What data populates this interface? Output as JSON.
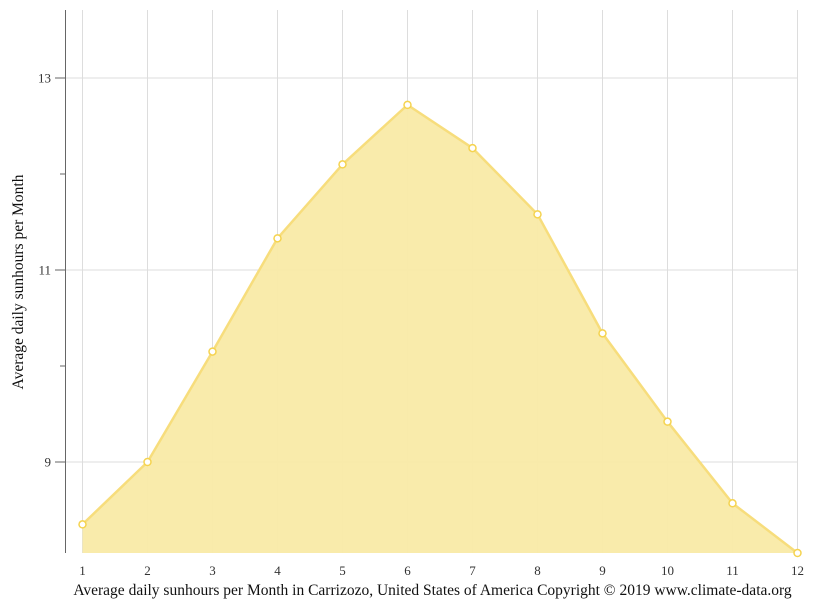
{
  "chart_data": {
    "type": "area",
    "title": "Average daily sunhours per Month in Carrizozo, United States of America Copyright © 2019 www.climate-data.org",
    "xlabel": "",
    "ylabel": "Average daily sunhours per Month",
    "categories": [
      "1",
      "2",
      "3",
      "4",
      "5",
      "6",
      "7",
      "8",
      "9",
      "10",
      "11",
      "12"
    ],
    "series": [
      {
        "name": "Average daily sunhours",
        "values": [
          8.35,
          9.0,
          10.15,
          11.33,
          12.1,
          12.72,
          12.27,
          11.58,
          10.34,
          9.42,
          8.57,
          8.05
        ],
        "fill_color": "#f9eaa6",
        "line_color": "#f7dd7c",
        "marker_color": "#f5d34f"
      }
    ],
    "ylim": [
      8.05,
      13.7
    ],
    "yticks_labeled": [
      9,
      11,
      13
    ],
    "yticks_minor": [
      10,
      12
    ],
    "grid": true,
    "legend": "none"
  },
  "yaxis": {
    "title": "Average daily sunhours per Month",
    "tick_labels": [
      "9",
      "11",
      "13"
    ]
  },
  "xaxis": {
    "tick_labels": [
      "1",
      "2",
      "3",
      "4",
      "5",
      "6",
      "7",
      "8",
      "9",
      "10",
      "11",
      "12"
    ]
  },
  "caption": "Average daily sunhours per Month in Carrizozo, United States of America Copyright © 2019 www.climate-data.org"
}
